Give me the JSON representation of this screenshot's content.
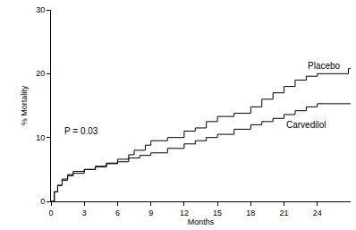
{
  "chart_data": {
    "type": "line",
    "line_style": "step",
    "x_label": "Months",
    "y_label": "% Mortality",
    "annotations": [
      "P = 0.03"
    ],
    "xlim": [
      0,
      27
    ],
    "xticks": [
      0,
      3,
      6,
      9,
      12,
      15,
      18,
      21,
      24
    ],
    "ylim": [
      0,
      30
    ],
    "yticks": [
      0,
      10,
      20,
      30
    ],
    "grid": false,
    "series": [
      {
        "name": "Placebo",
        "color": "#000000",
        "x": [
          0,
          0.3,
          0.6,
          1,
          1.5,
          2,
          3,
          4,
          5,
          6,
          7,
          7.5,
          8.5,
          9,
          10.5,
          12,
          13,
          14,
          15,
          16.5,
          18,
          19,
          20,
          21,
          22,
          23,
          24,
          26.5,
          26.8,
          27
        ],
        "values": [
          0,
          1.5,
          2.5,
          3.3,
          4,
          4.4,
          5,
          5.4,
          6,
          6.6,
          7.3,
          8,
          8.8,
          9.5,
          10,
          11,
          11.5,
          12.5,
          13.3,
          13.8,
          14.8,
          16,
          17,
          18,
          19,
          19.6,
          20,
          20,
          20.8,
          20.8
        ]
      },
      {
        "name": "Carvedilol",
        "color": "#000000",
        "x": [
          0,
          0.3,
          0.6,
          1,
          1.5,
          2,
          3,
          4,
          5,
          6,
          7,
          8,
          9,
          10.5,
          12,
          13,
          14,
          15,
          16.5,
          18,
          19,
          20,
          21,
          22,
          23,
          24,
          27
        ],
        "values": [
          0,
          1.5,
          2.5,
          3.5,
          4.2,
          4.7,
          5,
          5.5,
          5.9,
          6.2,
          6.8,
          7.2,
          7.6,
          8.3,
          9,
          9.5,
          10,
          10.5,
          11.3,
          12,
          12.5,
          13,
          13.6,
          14.2,
          14.8,
          15.3,
          15.3
        ]
      }
    ]
  }
}
